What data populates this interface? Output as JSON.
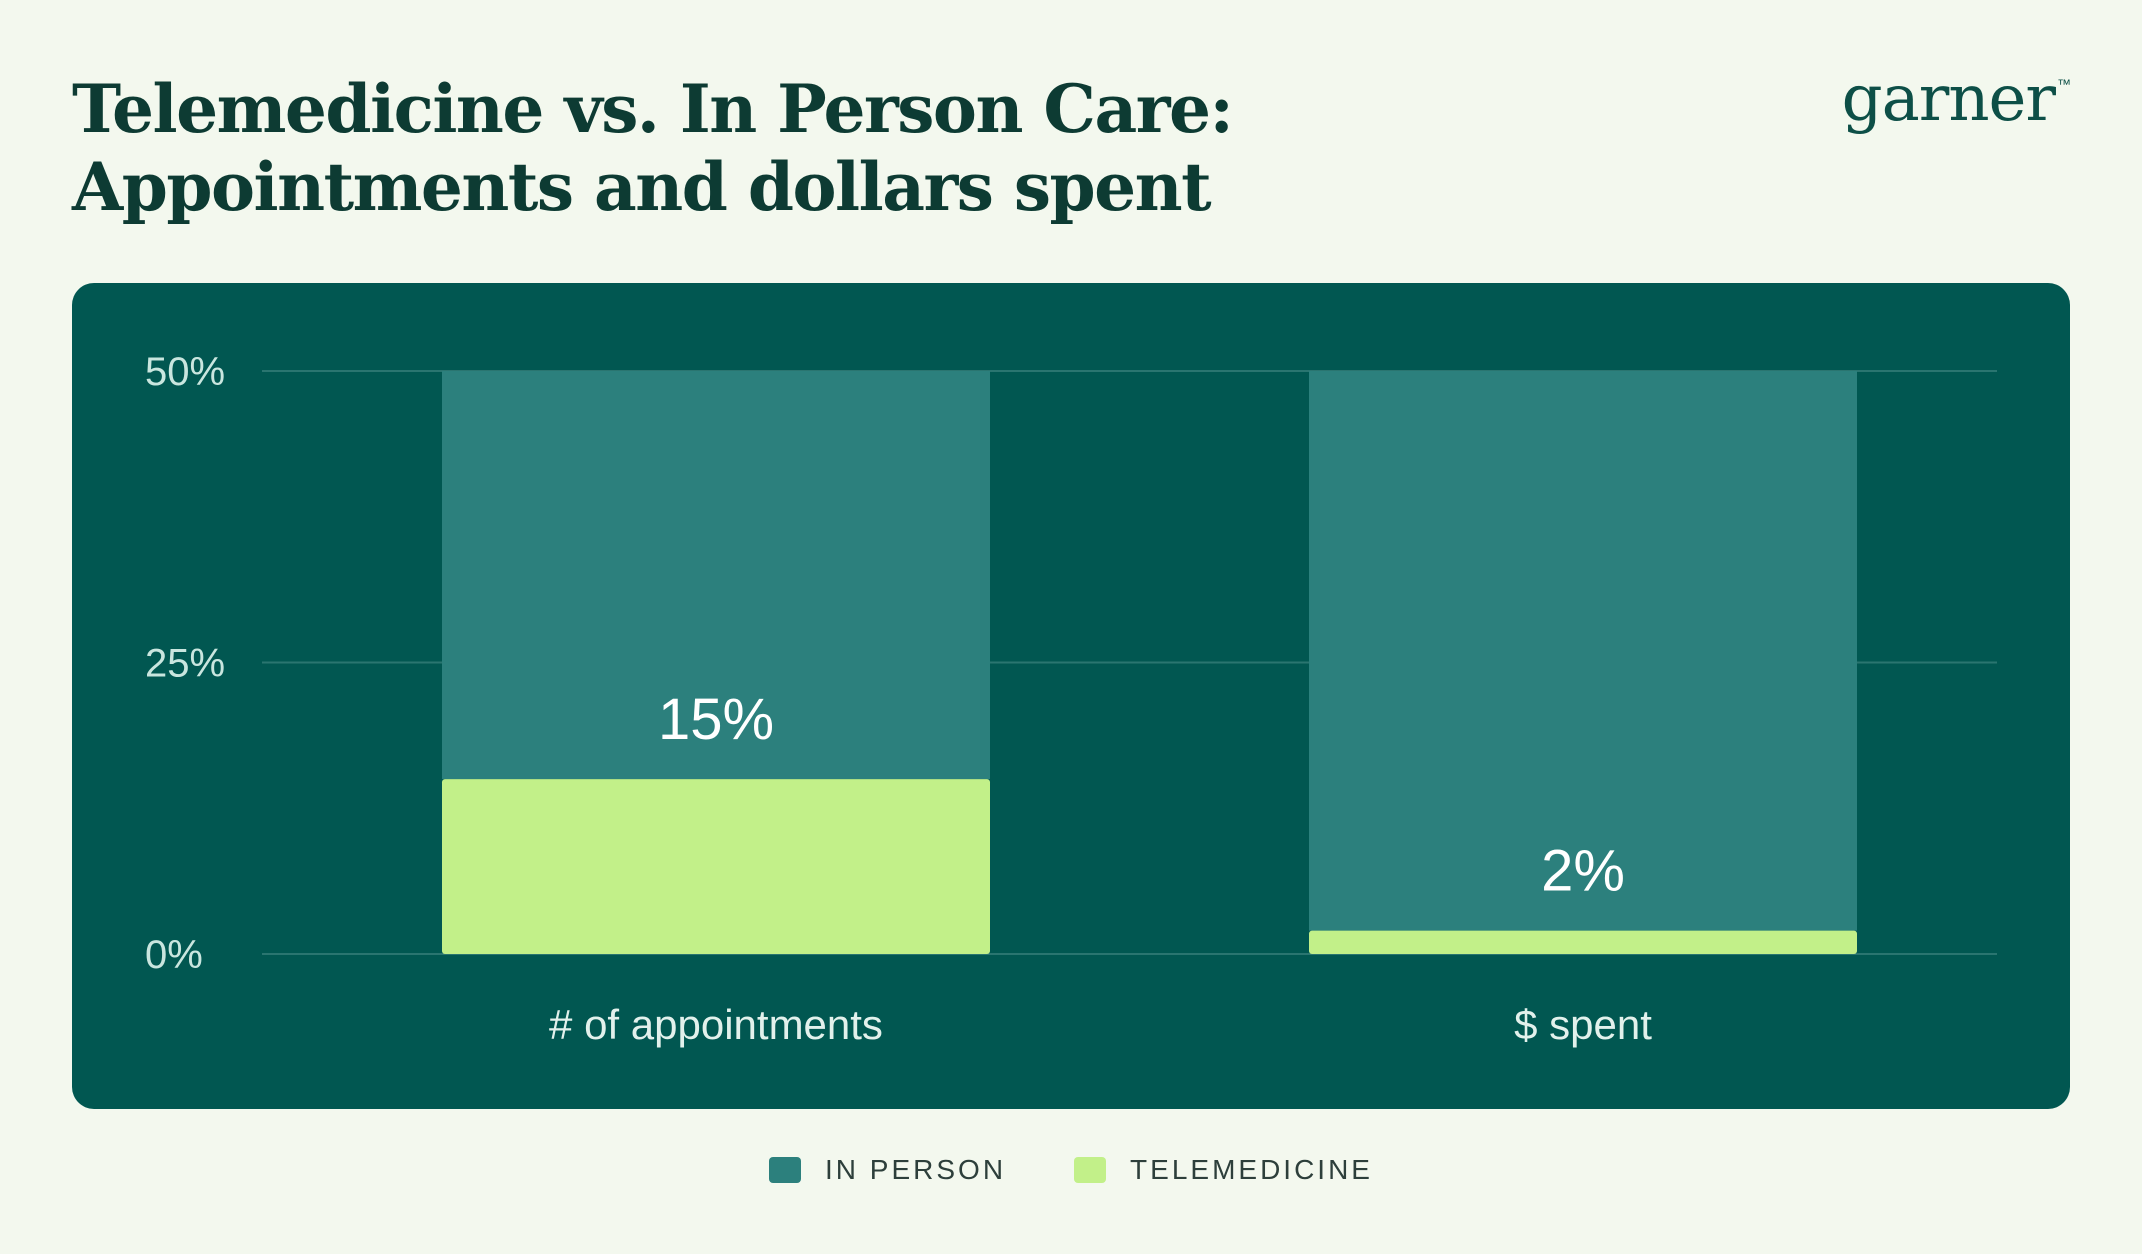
{
  "header": {
    "title_line1": "Telemedicine vs. In Person Care:",
    "title_line2": "Appointments and dollars spent",
    "logo": "garner",
    "logo_mark": "™"
  },
  "colors": {
    "page_bg": "#f3f8ee",
    "panel_bg": "#015751",
    "in_person": "#2c807d",
    "telemedicine": "#c2f089",
    "grid": "#2a7570",
    "tick_text": "#c9e6df",
    "value_text": "#ffffff"
  },
  "chart_data": {
    "type": "bar",
    "stacked": true,
    "categories": [
      "# of appointments",
      "$ spent"
    ],
    "series": [
      {
        "name": "TELEMEDICINE",
        "values": [
          15,
          2
        ]
      },
      {
        "name": "IN PERSON",
        "values": [
          35,
          48
        ]
      }
    ],
    "data_labels": [
      "15%",
      "2%"
    ],
    "ylim": [
      0,
      50
    ],
    "yticks": [
      0,
      25,
      50
    ],
    "ytick_labels": [
      "0%",
      "25%",
      "50%"
    ],
    "grid": true,
    "legend_position": "bottom-center"
  },
  "legend": [
    {
      "label": "IN PERSON",
      "color": "#2c807d"
    },
    {
      "label": "TELEMEDICINE",
      "color": "#c2f089"
    }
  ]
}
